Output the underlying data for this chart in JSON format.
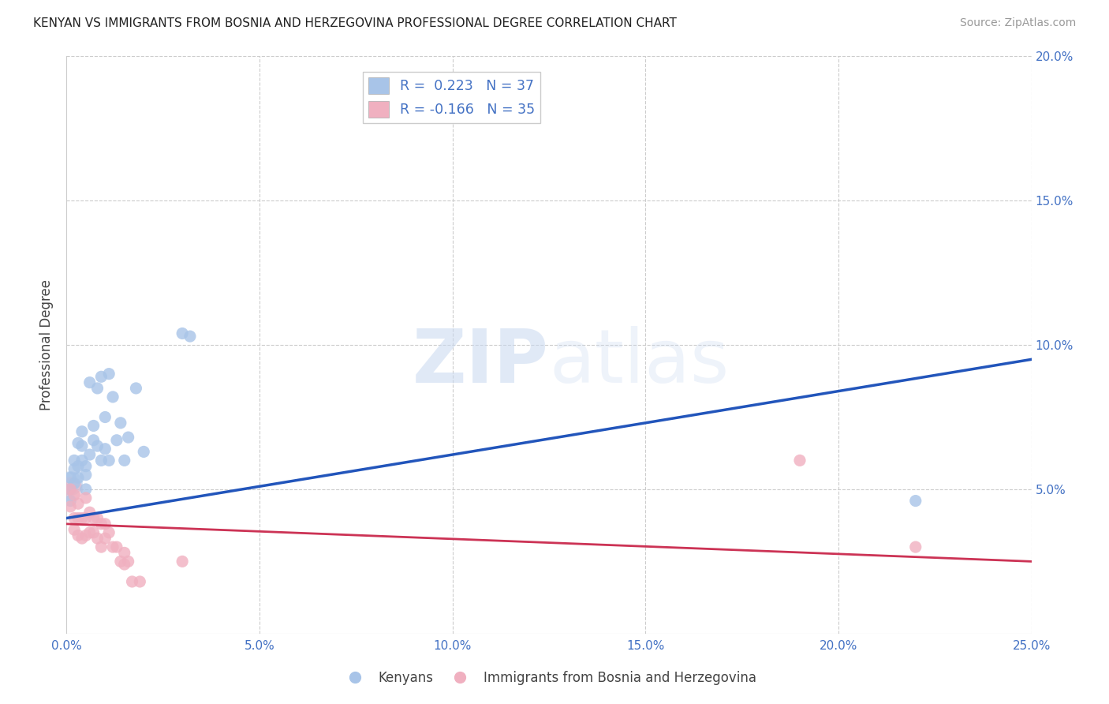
{
  "title": "KENYAN VS IMMIGRANTS FROM BOSNIA AND HERZEGOVINA PROFESSIONAL DEGREE CORRELATION CHART",
  "source": "Source: ZipAtlas.com",
  "ylabel": "Professional Degree",
  "xlim": [
    0.0,
    0.25
  ],
  "ylim": [
    0.0,
    0.2
  ],
  "xticks": [
    0.0,
    0.05,
    0.1,
    0.15,
    0.2,
    0.25
  ],
  "yticks": [
    0.0,
    0.05,
    0.1,
    0.15,
    0.2
  ],
  "xtick_labels": [
    "0.0%",
    "5.0%",
    "10.0%",
    "15.0%",
    "20.0%",
    "25.0%"
  ],
  "ytick_labels_right": [
    "",
    "5.0%",
    "10.0%",
    "15.0%",
    "20.0%"
  ],
  "background_color": "#ffffff",
  "legend_label1": "Kenyans",
  "legend_label2": "Immigrants from Bosnia and Herzegovina",
  "blue_scatter_color": "#a8c4e8",
  "pink_scatter_color": "#f0b0c0",
  "blue_line_color": "#2255bb",
  "pink_line_color": "#cc3355",
  "grid_color": "#cccccc",
  "kenyan_R": 0.223,
  "bosnia_R": -0.166,
  "kenyan_N": 37,
  "bosnia_N": 35,
  "kenyan_x": [
    0.001,
    0.001,
    0.001,
    0.002,
    0.002,
    0.002,
    0.003,
    0.003,
    0.003,
    0.004,
    0.004,
    0.004,
    0.005,
    0.005,
    0.005,
    0.006,
    0.006,
    0.007,
    0.007,
    0.008,
    0.008,
    0.009,
    0.009,
    0.01,
    0.01,
    0.011,
    0.011,
    0.012,
    0.013,
    0.014,
    0.015,
    0.016,
    0.018,
    0.02,
    0.03,
    0.032,
    0.22
  ],
  "kenyan_y": [
    0.054,
    0.05,
    0.046,
    0.06,
    0.057,
    0.052,
    0.066,
    0.058,
    0.054,
    0.07,
    0.065,
    0.06,
    0.058,
    0.055,
    0.05,
    0.087,
    0.062,
    0.072,
    0.067,
    0.085,
    0.065,
    0.089,
    0.06,
    0.075,
    0.064,
    0.09,
    0.06,
    0.082,
    0.067,
    0.073,
    0.06,
    0.068,
    0.085,
    0.063,
    0.104,
    0.103,
    0.046
  ],
  "bosnia_x": [
    0.001,
    0.001,
    0.002,
    0.002,
    0.002,
    0.003,
    0.003,
    0.003,
    0.004,
    0.004,
    0.005,
    0.005,
    0.005,
    0.006,
    0.006,
    0.007,
    0.007,
    0.008,
    0.008,
    0.009,
    0.009,
    0.01,
    0.01,
    0.011,
    0.012,
    0.013,
    0.014,
    0.015,
    0.015,
    0.016,
    0.017,
    0.019,
    0.03,
    0.19,
    0.22
  ],
  "bosnia_y": [
    0.05,
    0.044,
    0.048,
    0.04,
    0.036,
    0.045,
    0.04,
    0.034,
    0.04,
    0.033,
    0.047,
    0.04,
    0.034,
    0.042,
    0.035,
    0.04,
    0.035,
    0.04,
    0.033,
    0.038,
    0.03,
    0.038,
    0.033,
    0.035,
    0.03,
    0.03,
    0.025,
    0.028,
    0.024,
    0.025,
    0.018,
    0.018,
    0.025,
    0.06,
    0.03
  ]
}
